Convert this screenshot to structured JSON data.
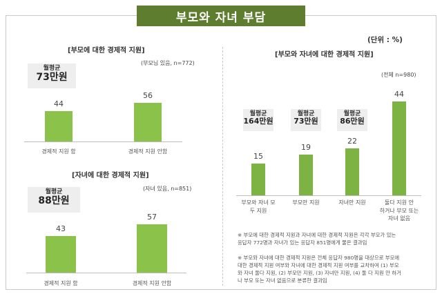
{
  "title": "부모와 자녀 부담",
  "unit": "(단위 : %)",
  "chart_data": [
    {
      "type": "bar",
      "title": "[부모에 대한 경제적 지원]",
      "note": "(부모님 있음, n=772)",
      "average": {
        "label": "월평균",
        "value": "73만원"
      },
      "categories": [
        "경제적 지원 함",
        "경제적 지원 안함"
      ],
      "values": [
        44,
        56
      ]
    },
    {
      "type": "bar",
      "title": "[자녀에 대한 경제적 지원]",
      "note": "(자녀 있음, n=851)",
      "average": {
        "label": "월평균",
        "value": "88만원"
      },
      "categories": [
        "경제적 지원 함",
        "경제적 지원 안함"
      ],
      "values": [
        43,
        57
      ]
    },
    {
      "type": "bar",
      "title": "[부모와 자녀에 대한 경제적 지원]",
      "note": "(전체 n=980)",
      "averages": [
        {
          "label": "월평균",
          "value": "164만원"
        },
        {
          "label": "월평균",
          "value": "73만원"
        },
        {
          "label": "월평균",
          "value": "86만원"
        }
      ],
      "categories": [
        [
          "부모와 자녀 모",
          "두 지원"
        ],
        [
          "부모만 지원"
        ],
        [
          "자녀만 지원"
        ],
        [
          "둘다 지원 안",
          "하거나 부모 또는",
          "자녀 없음"
        ]
      ],
      "values": [
        15,
        19,
        22,
        44
      ]
    }
  ],
  "footnotes": [
    "※ 부모에 대한 경제적 지원과 자녀에 대한 경제적 지원은 각각 부모가 있는",
    "응답자 772명과 자녀가 있는 응답자 851명에게 물은 결과임",
    "※ 부모와 자녀에 대한 경제적 지원은 전체 응답자 980명을 대상으로 부모에",
    "대한 경제적 지원 여부와 자녀에 대한 경제적 지원 여부를 교차하여 (1) 부모",
    "와 자녀 둘다 지원, (2) 부모만 지원, (3) 자녀만 지원, (4) 둘 다 지원 안 하거",
    "나 부모 또는 자녀 없음으로 분류한 결과임"
  ]
}
